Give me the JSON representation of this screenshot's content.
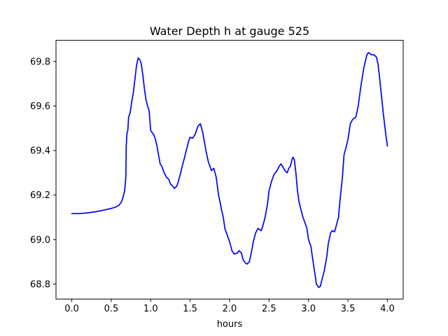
{
  "chart_data": {
    "type": "line",
    "title": "Water Depth h at gauge 525",
    "xlabel": "hours",
    "ylabel": "",
    "xlim": [
      -0.2,
      4.2
    ],
    "ylim": [
      68.733,
      69.895
    ],
    "xticks": [
      0.0,
      0.5,
      1.0,
      1.5,
      2.0,
      2.5,
      3.0,
      3.5,
      4.0
    ],
    "xtick_labels": [
      "0.0",
      "0.5",
      "1.0",
      "1.5",
      "2.0",
      "2.5",
      "3.0",
      "3.5",
      "4.0"
    ],
    "yticks": [
      68.8,
      69.0,
      69.2,
      69.4,
      69.6,
      69.8
    ],
    "ytick_labels": [
      "68.8",
      "69.0",
      "69.2",
      "69.4",
      "69.6",
      "69.8"
    ],
    "grid": false,
    "series": [
      {
        "color": "#0000ff",
        "x": [
          0.0,
          0.1,
          0.2,
          0.3,
          0.4,
          0.5,
          0.55,
          0.6,
          0.63,
          0.65,
          0.67,
          0.685,
          0.69,
          0.7,
          0.71,
          0.72,
          0.74,
          0.76,
          0.78,
          0.8,
          0.82,
          0.84,
          0.86,
          0.88,
          0.9,
          0.92,
          0.94,
          0.96,
          0.98,
          1.0,
          1.02,
          1.04,
          1.06,
          1.08,
          1.1,
          1.12,
          1.14,
          1.17,
          1.2,
          1.23,
          1.25,
          1.28,
          1.3,
          1.33,
          1.35,
          1.38,
          1.4,
          1.43,
          1.45,
          1.48,
          1.5,
          1.53,
          1.56,
          1.6,
          1.63,
          1.66,
          1.7,
          1.73,
          1.75,
          1.77,
          1.8,
          1.83,
          1.86,
          1.89,
          1.9,
          1.92,
          1.94,
          1.97,
          2.0,
          2.03,
          2.06,
          2.1,
          2.12,
          2.15,
          2.17,
          2.2,
          2.22,
          2.25,
          2.28,
          2.3,
          2.33,
          2.36,
          2.4,
          2.42,
          2.45,
          2.48,
          2.5,
          2.53,
          2.56,
          2.6,
          2.63,
          2.65,
          2.67,
          2.7,
          2.73,
          2.75,
          2.77,
          2.8,
          2.82,
          2.84,
          2.86,
          2.88,
          2.9,
          2.93,
          2.95,
          2.98,
          3.0,
          3.03,
          3.05,
          3.08,
          3.1,
          3.13,
          3.15,
          3.17,
          3.2,
          3.23,
          3.25,
          3.28,
          3.3,
          3.33,
          3.35,
          3.38,
          3.4,
          3.43,
          3.45,
          3.48,
          3.5,
          3.53,
          3.56,
          3.6,
          3.63,
          3.66,
          3.7,
          3.72,
          3.74,
          3.76,
          3.78,
          3.8,
          3.83,
          3.86,
          3.88,
          3.9,
          3.92,
          3.95,
          3.98,
          4.0
        ],
        "y": [
          69.117,
          69.117,
          69.12,
          69.125,
          69.132,
          69.14,
          69.145,
          69.155,
          69.17,
          69.19,
          69.22,
          69.28,
          69.42,
          69.48,
          69.49,
          69.55,
          69.57,
          69.62,
          69.66,
          69.72,
          69.78,
          69.815,
          69.81,
          69.79,
          69.74,
          69.68,
          69.63,
          69.6,
          69.58,
          69.49,
          69.48,
          69.47,
          69.45,
          69.42,
          69.38,
          69.34,
          69.33,
          69.3,
          69.28,
          69.27,
          69.25,
          69.24,
          69.23,
          69.24,
          69.26,
          69.3,
          69.33,
          69.37,
          69.4,
          69.44,
          69.46,
          69.455,
          69.47,
          69.51,
          69.52,
          69.48,
          69.4,
          69.35,
          69.33,
          69.31,
          69.32,
          69.28,
          69.2,
          69.15,
          69.13,
          69.1,
          69.05,
          69.02,
          68.99,
          68.95,
          68.935,
          68.94,
          68.95,
          68.94,
          68.91,
          68.895,
          68.89,
          68.9,
          68.95,
          68.99,
          69.03,
          69.05,
          69.04,
          69.06,
          69.1,
          69.16,
          69.22,
          69.26,
          69.29,
          69.31,
          69.33,
          69.34,
          69.33,
          69.31,
          69.3,
          69.32,
          69.33,
          69.37,
          69.36,
          69.3,
          69.22,
          69.17,
          69.14,
          69.1,
          69.08,
          69.05,
          69.0,
          68.97,
          68.92,
          68.85,
          68.8,
          68.785,
          68.79,
          68.82,
          68.86,
          68.92,
          68.98,
          69.03,
          69.04,
          69.035,
          69.06,
          69.1,
          69.18,
          69.28,
          69.38,
          69.42,
          69.45,
          69.52,
          69.54,
          69.55,
          69.6,
          69.68,
          69.77,
          69.8,
          69.83,
          69.84,
          69.835,
          69.83,
          69.83,
          69.82,
          69.79,
          69.73,
          69.66,
          69.56,
          69.47,
          69.42
        ]
      }
    ]
  }
}
